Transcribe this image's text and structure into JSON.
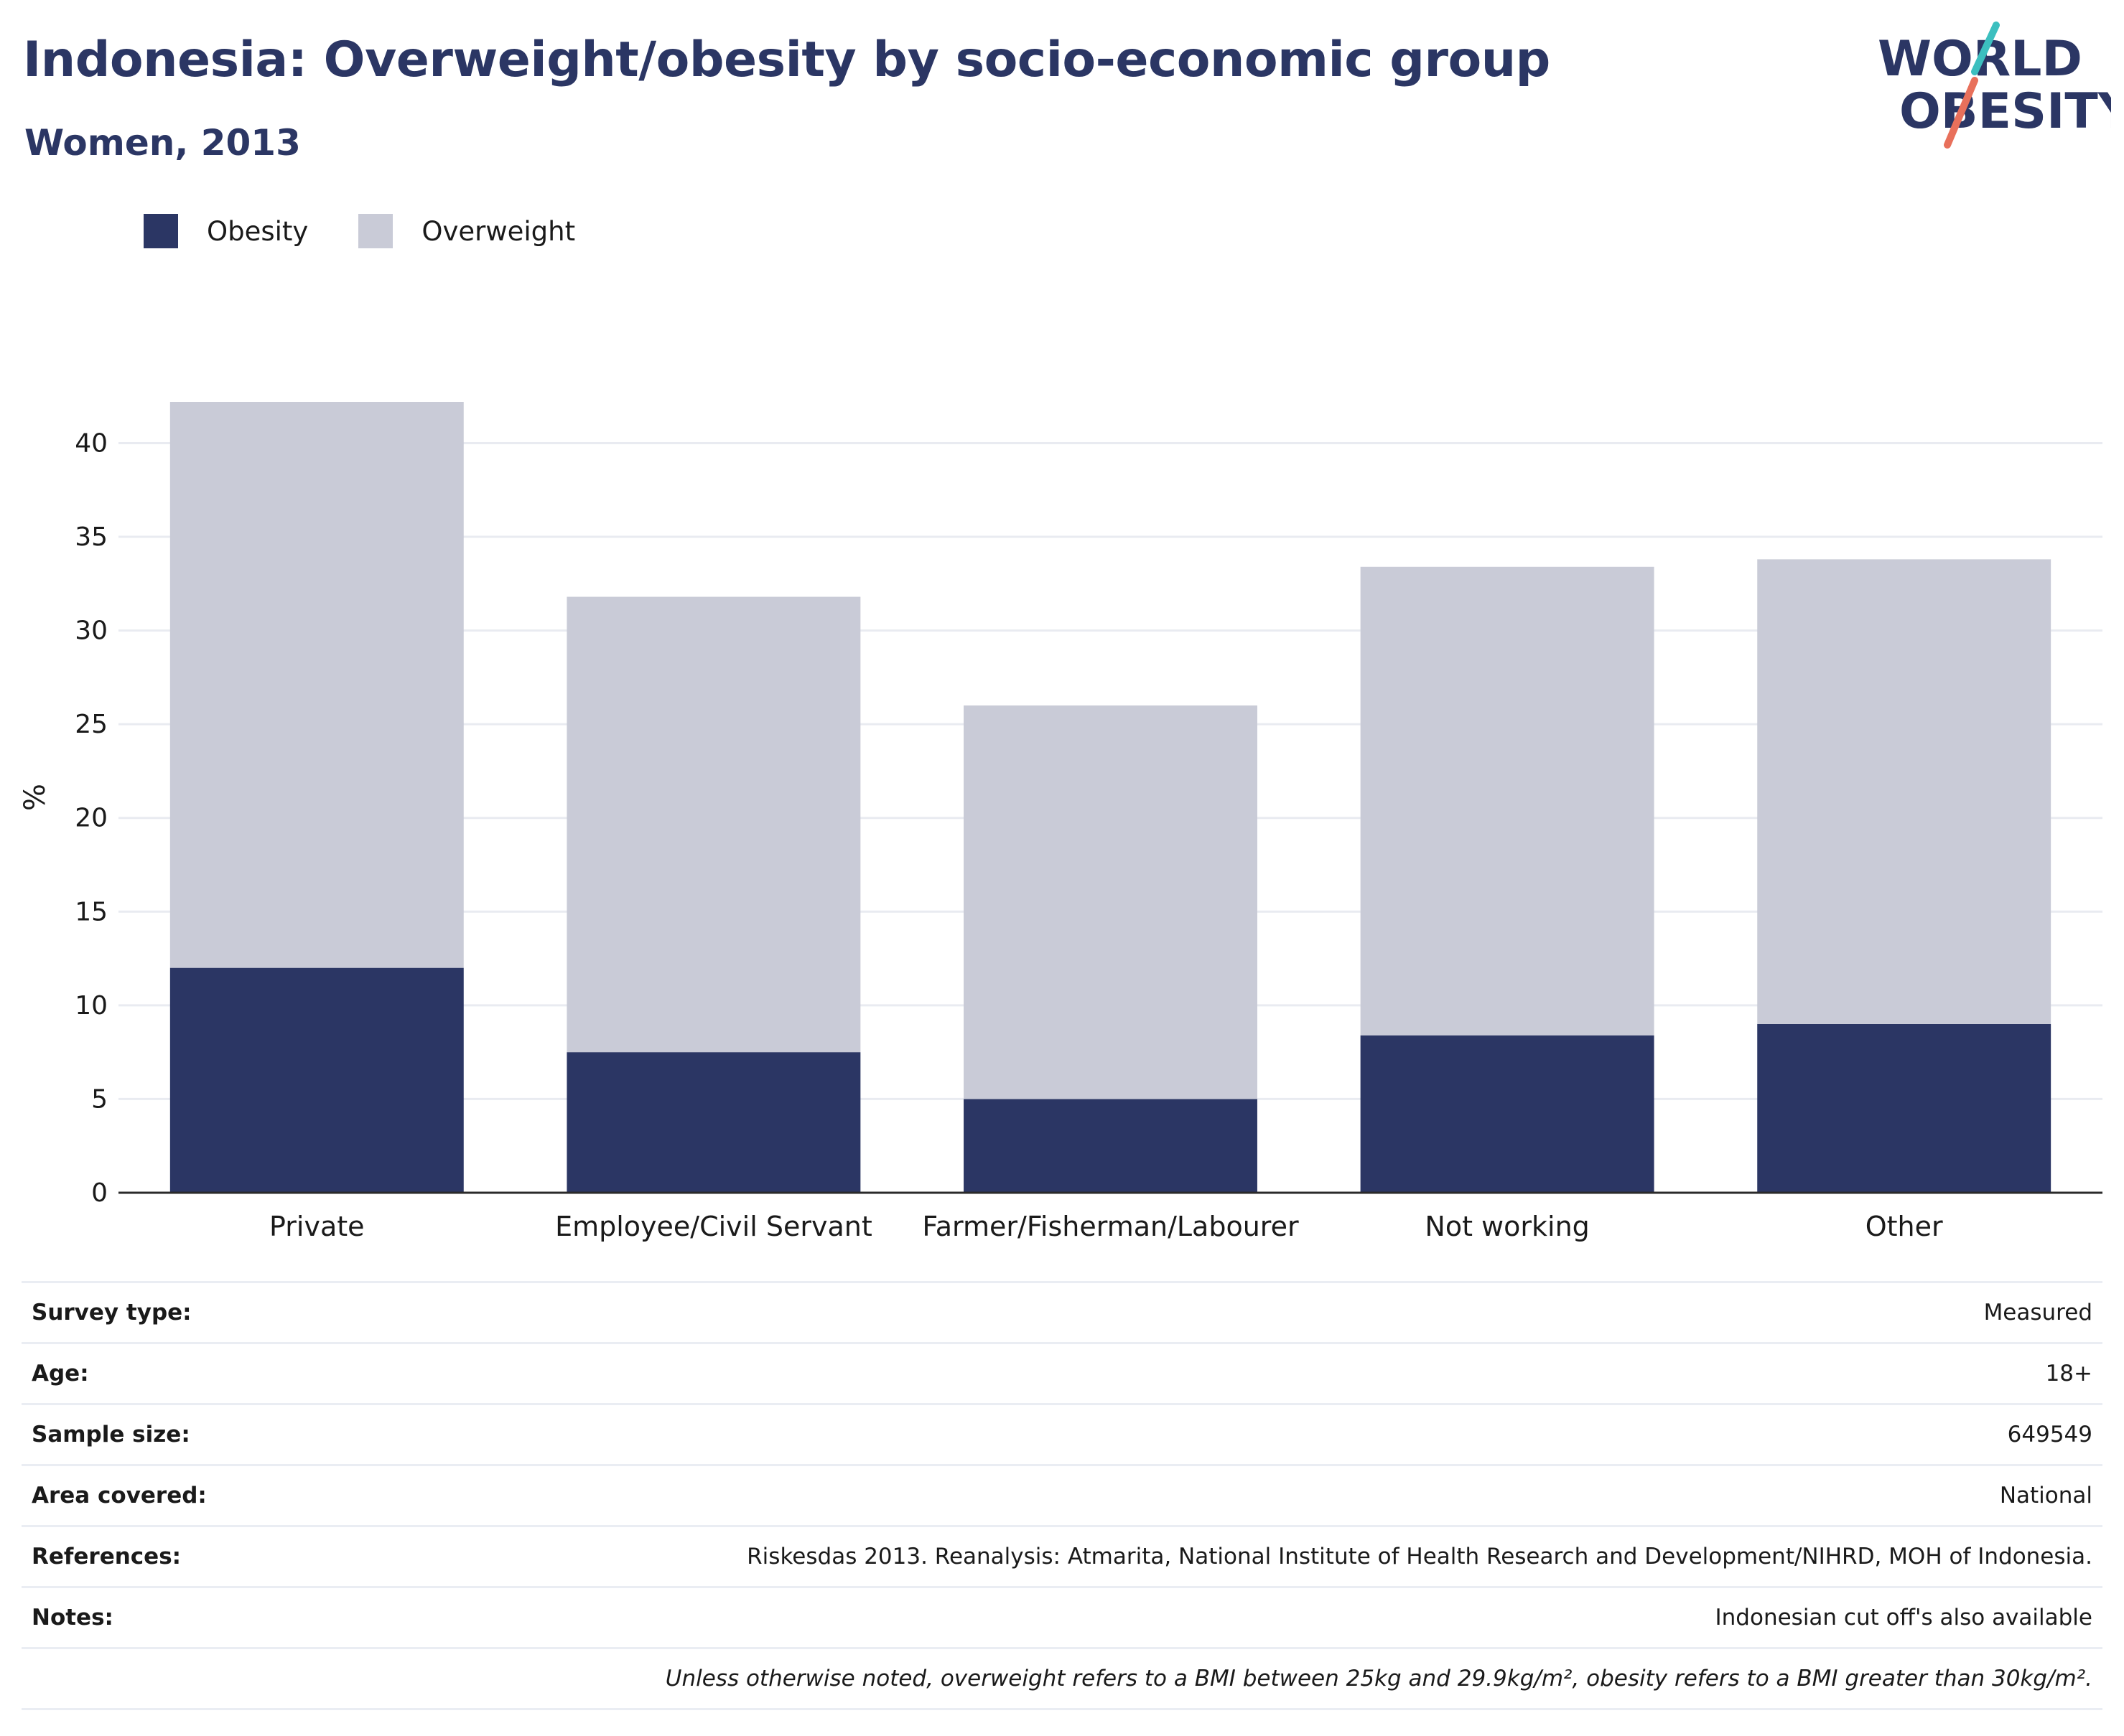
{
  "title": "Indonesia: Overweight/obesity by socio-economic group",
  "subtitle": "Women, 2013",
  "logo": {
    "line1": "WORLD",
    "line2": "OBESITY",
    "accent_top": "#3cbfbf",
    "accent_bottom": "#e8705b",
    "text_color": "#2b3664"
  },
  "legend": [
    {
      "label": "Obesity",
      "color": "#2b3664"
    },
    {
      "label": "Overweight",
      "color": "#c9cbd7"
    }
  ],
  "chart_data": {
    "type": "bar",
    "stacked": true,
    "categories": [
      "Private",
      "Employee/Civil Servant",
      "Farmer/Fisherman/Labourer",
      "Not working",
      "Other"
    ],
    "series": [
      {
        "name": "Obesity",
        "color": "#2b3664",
        "values": [
          12.0,
          7.5,
          5.0,
          8.4,
          9.0
        ]
      },
      {
        "name": "Overweight",
        "color": "#c9cbd7",
        "values": [
          30.2,
          24.3,
          21.0,
          25.0,
          24.8
        ]
      }
    ],
    "ylabel": "%",
    "xlabel": "",
    "ylim": [
      0,
      42.2
    ],
    "yticks": [
      0,
      5,
      10,
      15,
      20,
      25,
      30,
      35,
      40
    ],
    "grid": true,
    "legend_position": "top-left"
  },
  "info": [
    {
      "label": "Survey type:",
      "value": "Measured"
    },
    {
      "label": "Age:",
      "value": "18+"
    },
    {
      "label": "Sample size:",
      "value": "649549"
    },
    {
      "label": "Area covered:",
      "value": "National"
    },
    {
      "label": "References:",
      "value": "Riskesdas 2013. Reanalysis: Atmarita, National Institute of Health Research and Development/NIHRD, MOH of Indonesia."
    },
    {
      "label": "Notes:",
      "value": "Indonesian cut off's also available"
    }
  ],
  "footnote": "Unless otherwise noted, overweight refers to a BMI between 25kg and 29.9kg/m², obesity refers to a BMI greater than 30kg/m²."
}
